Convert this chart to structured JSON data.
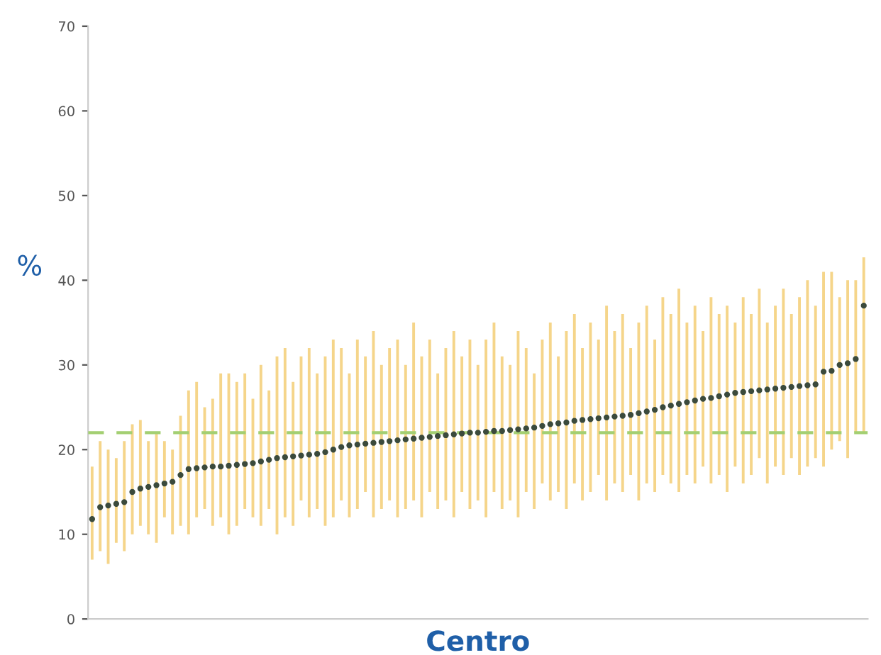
{
  "chart_data": {
    "type": "scatter",
    "xlabel": "Centro",
    "ylabel": "%",
    "categories": [
      null,
      null,
      null,
      null,
      null,
      null,
      null,
      null,
      null,
      null,
      null,
      null,
      null,
      null,
      null,
      null,
      null,
      null,
      null,
      null,
      null,
      null,
      null,
      null,
      null,
      null,
      null,
      null,
      null,
      null,
      null,
      null,
      null,
      null,
      null,
      null,
      null,
      null,
      null,
      null,
      null,
      null,
      null,
      null,
      null,
      null,
      null,
      null,
      null,
      null,
      null,
      null,
      null,
      null,
      null,
      null,
      null,
      null,
      null,
      null,
      null,
      null,
      null,
      null,
      null,
      null,
      null,
      null,
      null,
      null,
      null,
      null,
      null,
      null,
      null,
      null,
      null,
      null,
      null,
      null,
      null,
      null,
      null,
      null,
      null,
      null,
      null,
      null,
      null,
      null,
      null,
      null,
      null,
      null,
      null,
      null,
      null
    ],
    "series": [
      {
        "color": "#3b4a3c",
        "values": [
          11.8,
          13.2,
          13.4,
          13.6,
          13.8,
          15.0,
          15.4,
          15.6,
          15.8,
          16.0,
          16.2,
          17.0,
          17.7,
          17.8,
          17.9,
          18.0,
          18.0,
          18.1,
          18.2,
          18.3,
          18.4,
          18.6,
          18.8,
          19.0,
          19.1,
          19.2,
          19.3,
          19.4,
          19.5,
          19.7,
          20.0,
          20.3,
          20.5,
          20.6,
          20.7,
          20.8,
          20.9,
          21.0,
          21.1,
          21.2,
          21.3,
          21.4,
          21.5,
          21.6,
          21.7,
          21.8,
          21.9,
          22.0,
          22.0,
          22.1,
          22.2,
          22.2,
          22.3,
          22.4,
          22.5,
          22.6,
          22.8,
          23.0,
          23.1,
          23.2,
          23.4,
          23.5,
          23.6,
          23.7,
          23.8,
          23.9,
          24.0,
          24.1,
          24.3,
          24.5,
          24.7,
          25.0,
          25.2,
          25.4,
          25.6,
          25.8,
          26.0,
          26.1,
          26.3,
          26.5,
          26.7,
          26.8,
          26.9,
          27.0,
          27.1,
          27.2,
          27.3,
          27.4,
          27.5,
          27.6,
          27.7,
          29.2,
          29.3,
          30.0,
          30.2,
          30.7,
          37.0
        ],
        "errors": [
          [
            7,
            18
          ],
          [
            8,
            21
          ],
          [
            6.5,
            20
          ],
          [
            9,
            19
          ],
          [
            8,
            21
          ],
          [
            10,
            23
          ],
          [
            11,
            23.5
          ],
          [
            10,
            21
          ],
          [
            9,
            22
          ],
          [
            12,
            21
          ],
          [
            10,
            20
          ],
          [
            11,
            24
          ],
          [
            10,
            27
          ],
          [
            12,
            28
          ],
          [
            13,
            25
          ],
          [
            11,
            26
          ],
          [
            12,
            29
          ],
          [
            10,
            29
          ],
          [
            11,
            28
          ],
          [
            13,
            29
          ],
          [
            12,
            26
          ],
          [
            11,
            30
          ],
          [
            13,
            27
          ],
          [
            10,
            31
          ],
          [
            12,
            32
          ],
          [
            11,
            28
          ],
          [
            14,
            31
          ],
          [
            12,
            32
          ],
          [
            13,
            29
          ],
          [
            11,
            31
          ],
          [
            12,
            33
          ],
          [
            14,
            32
          ],
          [
            12,
            29
          ],
          [
            13,
            33
          ],
          [
            15,
            31
          ],
          [
            12,
            34
          ],
          [
            13,
            30
          ],
          [
            14,
            32
          ],
          [
            12,
            33
          ],
          [
            13,
            30
          ],
          [
            14,
            35
          ],
          [
            12,
            31
          ],
          [
            15,
            33
          ],
          [
            13,
            29
          ],
          [
            14,
            32
          ],
          [
            12,
            34
          ],
          [
            15,
            31
          ],
          [
            13,
            33
          ],
          [
            14,
            30
          ],
          [
            12,
            33
          ],
          [
            15,
            35
          ],
          [
            13,
            31
          ],
          [
            14,
            30
          ],
          [
            12,
            34
          ],
          [
            15,
            32
          ],
          [
            13,
            29
          ],
          [
            16,
            33
          ],
          [
            14,
            35
          ],
          [
            15,
            31
          ],
          [
            13,
            34
          ],
          [
            16,
            36
          ],
          [
            14,
            32
          ],
          [
            15,
            35
          ],
          [
            17,
            33
          ],
          [
            14,
            37
          ],
          [
            16,
            34
          ],
          [
            15,
            36
          ],
          [
            17,
            32
          ],
          [
            14,
            35
          ],
          [
            16,
            37
          ],
          [
            15,
            33
          ],
          [
            17,
            38
          ],
          [
            16,
            36
          ],
          [
            15,
            39
          ],
          [
            17,
            35
          ],
          [
            16,
            37
          ],
          [
            18,
            34
          ],
          [
            16,
            38
          ],
          [
            17,
            36
          ],
          [
            15,
            37
          ],
          [
            18,
            35
          ],
          [
            16,
            38
          ],
          [
            17,
            36
          ],
          [
            19,
            39
          ],
          [
            16,
            35
          ],
          [
            18,
            37
          ],
          [
            17,
            39
          ],
          [
            19,
            36
          ],
          [
            17,
            38
          ],
          [
            18,
            40
          ],
          [
            19,
            37
          ],
          [
            18,
            41
          ],
          [
            20,
            41
          ],
          [
            21,
            38
          ],
          [
            19,
            40
          ],
          [
            22,
            40
          ],
          [
            22,
            42.7
          ]
        ]
      }
    ],
    "ref_lines": [
      {
        "axis": "y",
        "value": 22,
        "color": "#a3cf72",
        "line_style": "dashed"
      }
    ],
    "ylim": [
      0,
      70
    ],
    "yticks": [
      0,
      10,
      20,
      30,
      40,
      50,
      60,
      70
    ],
    "marker": "circle",
    "grid": false,
    "legend": false
  }
}
